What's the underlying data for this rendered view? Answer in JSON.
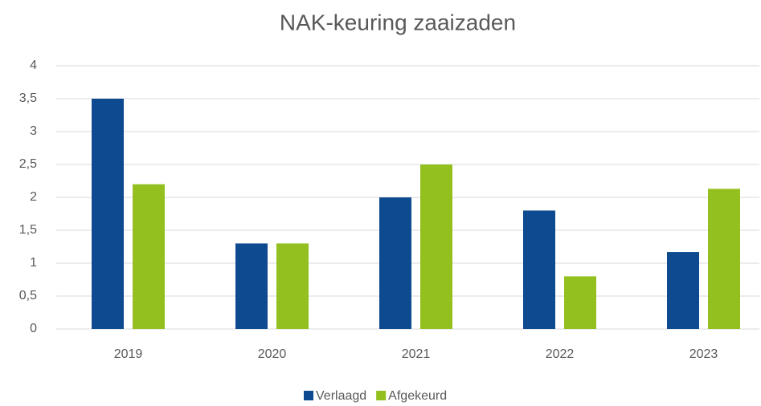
{
  "chart_data": {
    "type": "bar",
    "title": "NAK-keuring zaaizaden",
    "categories": [
      "2019",
      "2020",
      "2021",
      "2022",
      "2023"
    ],
    "series": [
      {
        "name": "Verlaagd",
        "color": "#0e4a8f",
        "values": [
          3.5,
          1.3,
          2.0,
          1.8,
          1.17
        ]
      },
      {
        "name": "Afgekeurd",
        "color": "#93c01f",
        "values": [
          2.2,
          1.3,
          2.5,
          0.8,
          2.13
        ]
      }
    ],
    "ylim": [
      0,
      4
    ],
    "yticks": [
      0,
      {
        "value": 0.5,
        "label": "0,5"
      },
      1,
      {
        "value": 1.5,
        "label": "1,5"
      },
      2,
      {
        "value": 2.5,
        "label": "2,5"
      },
      3,
      {
        "value": 3.5,
        "label": "3,5"
      },
      4
    ],
    "grid": true,
    "legend": "bottom"
  }
}
